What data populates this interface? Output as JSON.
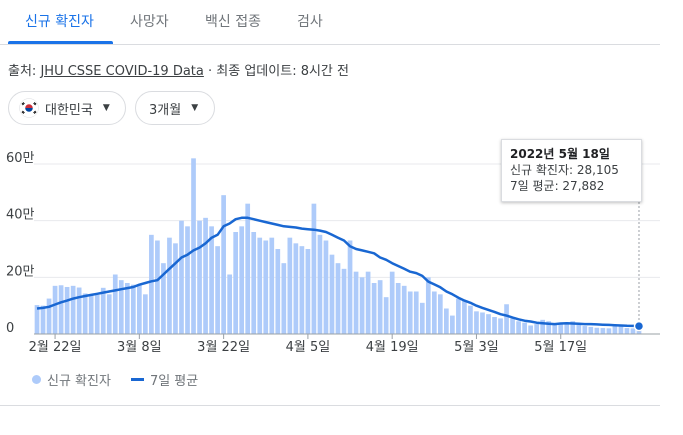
{
  "tabs": [
    {
      "label": "신규 확진자",
      "active": true
    },
    {
      "label": "사망자",
      "active": false
    },
    {
      "label": "백신 접종",
      "active": false
    },
    {
      "label": "검사",
      "active": false
    }
  ],
  "source": {
    "prefix": "출처:",
    "link": "JHU CSSE COVID-19 Data",
    "separator": "·",
    "update": "최종 업데이트: 8시간 전"
  },
  "filters": {
    "country": "대한민국",
    "country_flag_icon": "south-korea-flag-icon",
    "period": "3개월",
    "caret_icon": "caret-down-icon"
  },
  "tooltip": {
    "date": "2022년 5월 18일",
    "cases_line": "신규 확진자: 28,105",
    "avg_line": "7일 평균: 27,882"
  },
  "legend": {
    "bars_label": "신규 확진자",
    "line_label": "7일 평균"
  },
  "colors": {
    "accent": "#1a73e8",
    "bars": "#aecbfa",
    "avg_line": "#1967d2"
  },
  "chart_data": {
    "type": "bar",
    "y_ticks": [
      "0",
      "20만",
      "40만",
      "60만"
    ],
    "ylim": [
      0,
      600000
    ],
    "x_tick_labels": [
      {
        "label": "2월 22일",
        "index": 3
      },
      {
        "label": "3월 8일",
        "index": 17
      },
      {
        "label": "3월 22일",
        "index": 31
      },
      {
        "label": "4월 5일",
        "index": 45
      },
      {
        "label": "4월 19일",
        "index": 59
      },
      {
        "label": "5월 3일",
        "index": 73
      },
      {
        "label": "5월 17일",
        "index": 87
      }
    ],
    "grid": true,
    "series": [
      {
        "name": "신규 확진자",
        "type": "bar",
        "values": [
          102000,
          100000,
          125000,
          170000,
          172000,
          166000,
          170000,
          164000,
          143000,
          136000,
          138000,
          163000,
          140000,
          210000,
          190000,
          180000,
          174000,
          174000,
          140000,
          350000,
          330000,
          250000,
          340000,
          320000,
          400000,
          380000,
          620000,
          400000,
          410000,
          380000,
          310000,
          490000,
          210000,
          360000,
          380000,
          460000,
          360000,
          340000,
          330000,
          340000,
          300000,
          250000,
          340000,
          320000,
          310000,
          300000,
          460000,
          350000,
          330000,
          280000,
          250000,
          230000,
          330000,
          220000,
          200000,
          220000,
          180000,
          190000,
          130000,
          220000,
          180000,
          170000,
          150000,
          150000,
          110000,
          200000,
          150000,
          140000,
          90000,
          65000,
          125000,
          118000,
          100000,
          80000,
          76000,
          70000,
          60000,
          55000,
          105000,
          55000,
          45000,
          40000,
          30000,
          35000,
          50000,
          45000,
          38000,
          35000,
          34000,
          45000,
          32000,
          28000,
          25000,
          22000,
          21000,
          20000,
          30000,
          28000,
          21000,
          20000,
          28105
        ],
        "color": "#aecbfa"
      },
      {
        "name": "7일 평균",
        "type": "line",
        "values": [
          90000,
          92000,
          96000,
          104000,
          112000,
          118000,
          125000,
          130000,
          134000,
          138000,
          142000,
          146000,
          150000,
          154000,
          158000,
          162000,
          166000,
          174000,
          180000,
          186000,
          190000,
          210000,
          230000,
          250000,
          270000,
          280000,
          295000,
          305000,
          320000,
          340000,
          350000,
          380000,
          390000,
          405000,
          410000,
          410000,
          405000,
          400000,
          395000,
          390000,
          385000,
          380000,
          378000,
          376000,
          372000,
          370000,
          368000,
          365000,
          360000,
          350000,
          340000,
          330000,
          310000,
          300000,
          295000,
          290000,
          285000,
          270000,
          262000,
          250000,
          240000,
          230000,
          220000,
          215000,
          205000,
          185000,
          175000,
          165000,
          150000,
          140000,
          128000,
          118000,
          110000,
          100000,
          92000,
          85000,
          78000,
          70000,
          65000,
          58000,
          52000,
          47000,
          44000,
          40000,
          38000,
          36000,
          35000,
          37000,
          38000,
          37000,
          36000,
          35000,
          35000,
          34000,
          33000,
          32000,
          31000,
          30000,
          29000,
          28500,
          27882
        ],
        "color": "#1967d2"
      }
    ]
  }
}
